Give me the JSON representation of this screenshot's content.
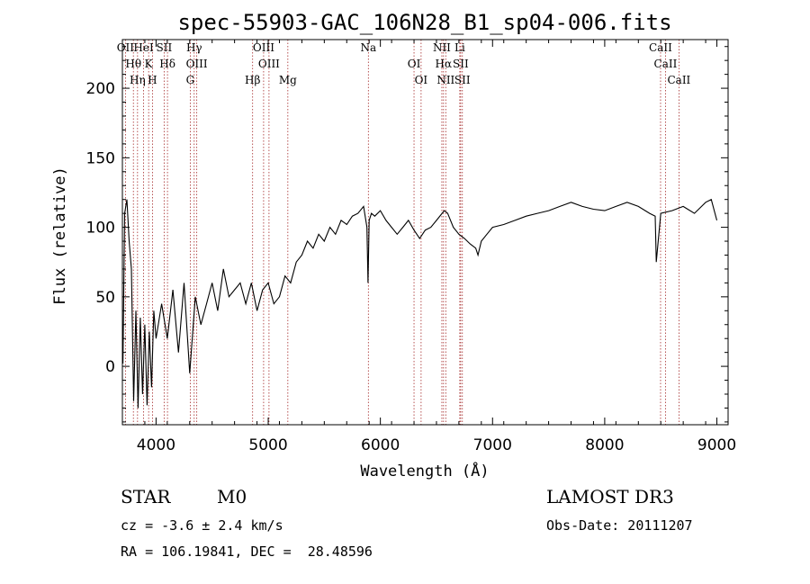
{
  "chart_data": {
    "type": "line",
    "title": "spec-55903-GAC_106N28_B1_sp04-006.fits",
    "xlabel": "Wavelength (Å)",
    "ylabel": "Flux (relative)",
    "xlim": [
      3700,
      9100
    ],
    "ylim": [
      -42,
      235
    ],
    "xticks": [
      4000,
      5000,
      6000,
      7000,
      8000,
      9000
    ],
    "yticks": [
      0,
      50,
      100,
      150,
      200
    ],
    "series": [
      {
        "name": "spectrum",
        "x": [
          3705,
          3720,
          3740,
          3760,
          3780,
          3800,
          3820,
          3840,
          3860,
          3880,
          3900,
          3920,
          3940,
          3960,
          3980,
          4000,
          4050,
          4100,
          4150,
          4200,
          4250,
          4300,
          4350,
          4400,
          4450,
          4500,
          4550,
          4600,
          4650,
          4700,
          4750,
          4800,
          4850,
          4900,
          4950,
          5000,
          5050,
          5100,
          5150,
          5200,
          5250,
          5300,
          5350,
          5400,
          5450,
          5500,
          5550,
          5600,
          5650,
          5700,
          5750,
          5800,
          5850,
          5880,
          5890,
          5900,
          5920,
          5950,
          6000,
          6050,
          6100,
          6150,
          6200,
          6250,
          6300,
          6350,
          6400,
          6450,
          6500,
          6550,
          6570,
          6600,
          6650,
          6700,
          6750,
          6800,
          6850,
          6870,
          6900,
          6950,
          7000,
          7100,
          7200,
          7300,
          7400,
          7500,
          7600,
          7700,
          7800,
          7900,
          8000,
          8100,
          8200,
          8300,
          8400,
          8450,
          8460,
          8500,
          8600,
          8700,
          8800,
          8900,
          8950,
          9000
        ],
        "y": [
          2,
          110,
          120,
          90,
          70,
          -25,
          40,
          -30,
          35,
          -20,
          30,
          -28,
          25,
          -15,
          40,
          20,
          45,
          20,
          55,
          10,
          60,
          -5,
          50,
          30,
          45,
          60,
          40,
          70,
          50,
          55,
          60,
          45,
          60,
          40,
          55,
          60,
          45,
          50,
          65,
          60,
          75,
          80,
          90,
          85,
          95,
          90,
          100,
          95,
          105,
          102,
          108,
          110,
          115,
          100,
          60,
          105,
          110,
          108,
          112,
          105,
          100,
          95,
          100,
          105,
          98,
          92,
          98,
          100,
          105,
          110,
          112,
          110,
          100,
          95,
          92,
          88,
          85,
          80,
          90,
          95,
          100,
          102,
          105,
          108,
          110,
          112,
          115,
          118,
          115,
          113,
          112,
          115,
          118,
          115,
          110,
          108,
          75,
          110,
          112,
          115,
          110,
          118,
          120,
          105
        ]
      }
    ],
    "lines": [
      {
        "name": "OII",
        "x": 3727
      },
      {
        "name": "Hθ",
        "x": 3798
      },
      {
        "name": "Hη",
        "x": 3835
      },
      {
        "name": "HeI",
        "x": 3889
      },
      {
        "name": "K",
        "x": 3934
      },
      {
        "name": "H",
        "x": 3968
      },
      {
        "name": "SII",
        "x": 4072
      },
      {
        "name": "Hδ",
        "x": 4102
      },
      {
        "name": "G",
        "x": 4305
      },
      {
        "name": "Hγ",
        "x": 4340
      },
      {
        "name": "OIII",
        "x": 4363
      },
      {
        "name": "Hβ",
        "x": 4861
      },
      {
        "name": "OIII",
        "x": 4959
      },
      {
        "name": "OIII",
        "x": 5007
      },
      {
        "name": "Mg",
        "x": 5175
      },
      {
        "name": "Na",
        "x": 5893
      },
      {
        "name": "OI",
        "x": 6300
      },
      {
        "name": "OI",
        "x": 6363
      },
      {
        "name": "NII",
        "x": 6548
      },
      {
        "name": "Hα",
        "x": 6563
      },
      {
        "name": "NII",
        "x": 6583
      },
      {
        "name": "Li",
        "x": 6708
      },
      {
        "name": "SII",
        "x": 6716
      },
      {
        "name": "SII",
        "x": 6731
      },
      {
        "name": "CaII",
        "x": 8498
      },
      {
        "name": "CaII",
        "x": 8542
      },
      {
        "name": "CaII",
        "x": 8662
      }
    ]
  },
  "info": {
    "class": "STAR",
    "subclass": "M0",
    "cz": "cz = -3.6 ± 2.4 km/s",
    "radec": "RA = 106.19841, DEC =  28.48596",
    "survey": "LAMOST DR3",
    "obsdate": "Obs-Date: 20111207"
  }
}
